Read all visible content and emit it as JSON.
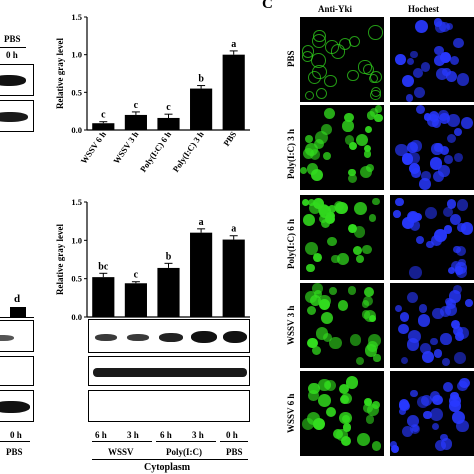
{
  "panel_c": {
    "letter": "C",
    "columns": [
      "Anti-Yki",
      "Hochest"
    ],
    "rows": [
      "PBS",
      "Poly(I:C) 3 h",
      "Poly(I:C) 6 h",
      "WSSV 3 h",
      "WSSV 6 h"
    ],
    "colors": {
      "green": "#32dc1e",
      "blue": "#2838ff"
    }
  },
  "left_top": {
    "pbs_label": "PBS",
    "time_label": "0 h"
  },
  "left_bottom": {
    "sig_letter": "d",
    "time_label": "0 h",
    "pbs_label": "PBS"
  },
  "middle_bottom": {
    "lanes": [
      "6 h",
      "3 h",
      "6 h",
      "3 h",
      "0 h"
    ],
    "groups": [
      "WSSV",
      "Poly(I:C)",
      "PBS"
    ],
    "compartment": "Cytoplasm"
  },
  "chart_data": [
    {
      "type": "bar",
      "categories": [
        "WSSV 6 h",
        "WSSV 3 h",
        "Poly(I:C) 6 h",
        "Poly(I:C) 3 h",
        "PBS"
      ],
      "values": [
        0.09,
        0.2,
        0.16,
        0.55,
        1.0
      ],
      "errors": [
        0.02,
        0.04,
        0.05,
        0.04,
        0.05
      ],
      "significance": [
        "c",
        "c",
        "c",
        "b",
        "a"
      ],
      "ylabel": "Relative gray level",
      "ylim": [
        0,
        1.5
      ],
      "yticks": [
        0.0,
        0.5,
        1.0,
        1.5
      ],
      "yticklabels": [
        "0.0",
        "0.5",
        "1.0",
        "1.5"
      ]
    },
    {
      "type": "bar",
      "categories": [
        "6 h",
        "3 h",
        "6 h",
        "3 h",
        "0 h"
      ],
      "values": [
        0.52,
        0.44,
        0.64,
        1.1,
        1.01
      ],
      "errors": [
        0.05,
        0.02,
        0.06,
        0.05,
        0.05
      ],
      "significance": [
        "bc",
        "c",
        "b",
        "a",
        "a"
      ],
      "ylabel": "Relative gray level",
      "ylim": [
        0,
        1.5
      ],
      "yticks": [
        0.0,
        0.5,
        1.0,
        1.5
      ],
      "yticklabels": [
        "0.0",
        "0.5",
        "1.0",
        "1.5"
      ]
    }
  ]
}
